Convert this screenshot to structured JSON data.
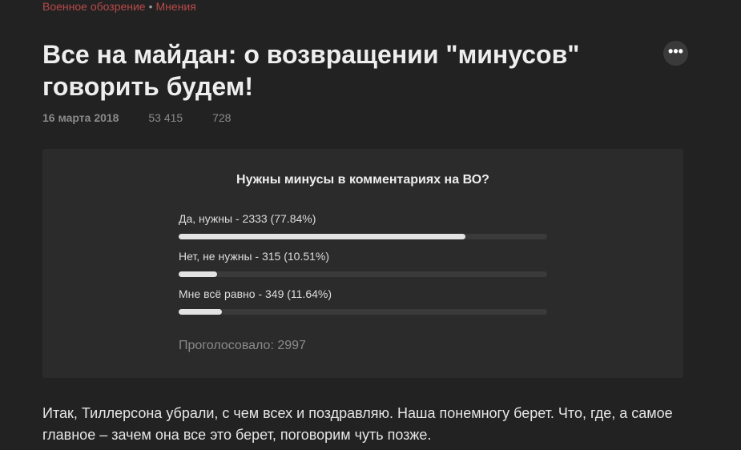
{
  "breadcrumb": {
    "site": "Военное обозрение",
    "separator": "•",
    "section": "Мнения"
  },
  "title": "Все на майдан: о возвращении \"минусов\" говорить будем!",
  "more_label": "•••",
  "meta": {
    "date": "16 марта 2018",
    "views": "53 415",
    "comments": "728"
  },
  "poll": {
    "question": "Нужны минусы в комментариях на ВО?",
    "options": [
      {
        "label": "Да, нужны - 2333 (77.84%)",
        "percent": 77.84
      },
      {
        "label": "Нет, не нужны - 315 (10.51%)",
        "percent": 10.51
      },
      {
        "label": "Мне всё равно - 349 (11.64%)",
        "percent": 11.64
      }
    ],
    "total": "Проголосовало: 2997"
  },
  "article_text": "Итак, Тиллерсона убрали, с чем всех и поздравляю. Наша понемногу берет. Что, где, а самое главное – зачем она все это берет, поговорим чуть позже.",
  "colors": {
    "background": "#222222",
    "card": "#2b2b2b",
    "accent": "#b84a4a",
    "bar_fill": "#e3e3e3",
    "bar_track": "#3a3a3a"
  }
}
